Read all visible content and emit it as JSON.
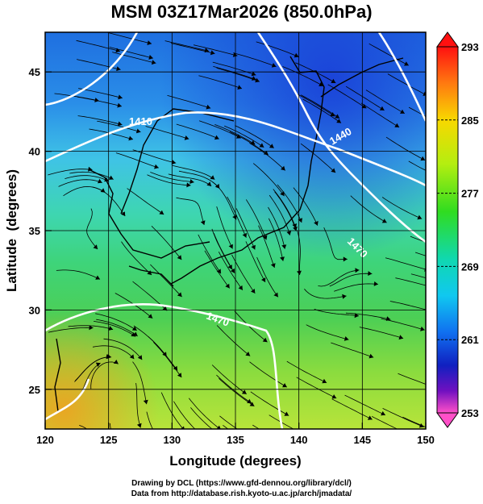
{
  "title": "MSM 03Z17Mar2026 (850.0hPa)",
  "x_axis": {
    "label": "Longitude (degrees)",
    "ticks": [
      "120",
      "125",
      "130",
      "135",
      "140",
      "145",
      "150"
    ],
    "range": [
      120,
      150
    ]
  },
  "y_axis": {
    "label": "Latitude  (degrees)",
    "ticks": [
      "25",
      "30",
      "35",
      "40",
      "45"
    ],
    "range": [
      22.5,
      47.5
    ]
  },
  "colorbar": {
    "labels": [
      "293",
      "285",
      "277",
      "269",
      "261",
      "253"
    ],
    "range": [
      253,
      293
    ],
    "colors": [
      "#ff0000",
      "#ff8000",
      "#f0e000",
      "#b0f000",
      "#30e000",
      "#00d090",
      "#00d0e0",
      "#0090f0",
      "#0030e0",
      "#1010a0",
      "#8000c0",
      "#ff40c0"
    ]
  },
  "contour_labels": [
    "1410",
    "1440",
    "1440",
    "1470",
    "1470"
  ],
  "credits": {
    "line1": "Drawing by DCL (https://www.gfd-dennou.org/library/dcl/)",
    "line2": "Data from http://database.rish.kyoto-u.ac.jp/arch/jmadata/"
  }
}
